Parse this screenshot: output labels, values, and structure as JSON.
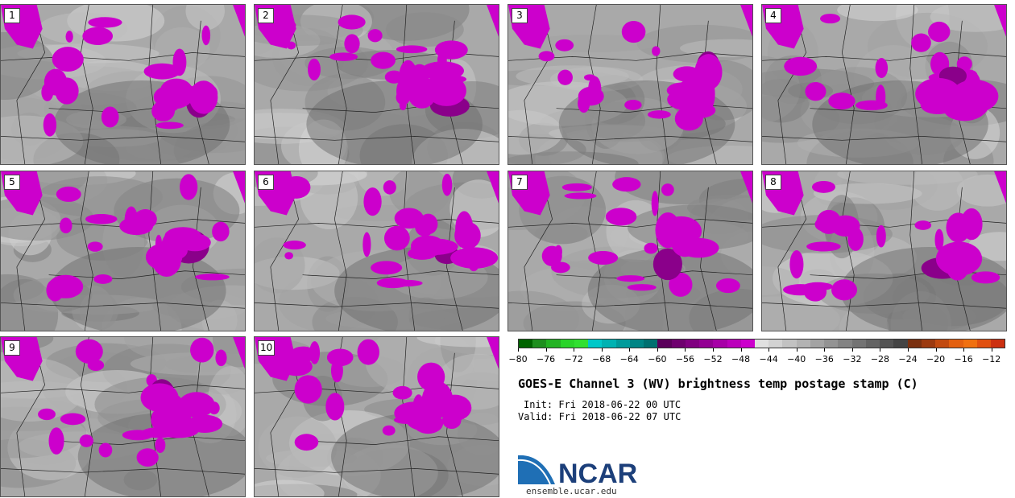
{
  "panels": [
    {
      "label": "1",
      "seed": 11
    },
    {
      "label": "2",
      "seed": 23
    },
    {
      "label": "3",
      "seed": 37
    },
    {
      "label": "4",
      "seed": 41
    },
    {
      "label": "5",
      "seed": 53
    },
    {
      "label": "6",
      "seed": 67
    },
    {
      "label": "7",
      "seed": 71
    },
    {
      "label": "8",
      "seed": 83
    },
    {
      "label": "9",
      "seed": 97
    },
    {
      "label": "10",
      "seed": 103
    }
  ],
  "colorbar": {
    "colors": [
      "#006400",
      "#1f8f1f",
      "#23b323",
      "#2ad42a",
      "#31e031",
      "#00c8c8",
      "#00b2b2",
      "#009b9b",
      "#008585",
      "#007070",
      "#5a005a",
      "#6e006e",
      "#800080",
      "#930093",
      "#a700a7",
      "#bb00bb",
      "#cc00cc",
      "#e0e0e0",
      "#d2d2d2",
      "#c2c2c2",
      "#b3b3b3",
      "#a3a3a3",
      "#939393",
      "#838383",
      "#737373",
      "#636363",
      "#535353",
      "#444444",
      "#7a3010",
      "#9c3a10",
      "#c24a10",
      "#e36010",
      "#f07010",
      "#e05010",
      "#cc3010"
    ],
    "ticks": [
      "−80",
      "−76",
      "−72",
      "−68",
      "−64",
      "−60",
      "−56",
      "−52",
      "−48",
      "−44",
      "−40",
      "−36",
      "−32",
      "−28",
      "−24",
      "−20",
      "−16",
      "−12"
    ],
    "min": -80,
    "max": -10
  },
  "title": "GOES-E Channel 3 (WV) brightness temp postage stamp (C)",
  "init": "Init: Fri 2018-06-22 00 UTC",
  "valid": "Valid: Fri 2018-06-22 07 UTC",
  "logo": {
    "text": "NCAR",
    "url": "ensemble.ucar.edu",
    "colors": {
      "blue": "#1f6fb5",
      "text": "#1c3f7a"
    }
  },
  "colors": {
    "magenta": "#cc00cc",
    "land_gray": "#a9a9a9"
  }
}
